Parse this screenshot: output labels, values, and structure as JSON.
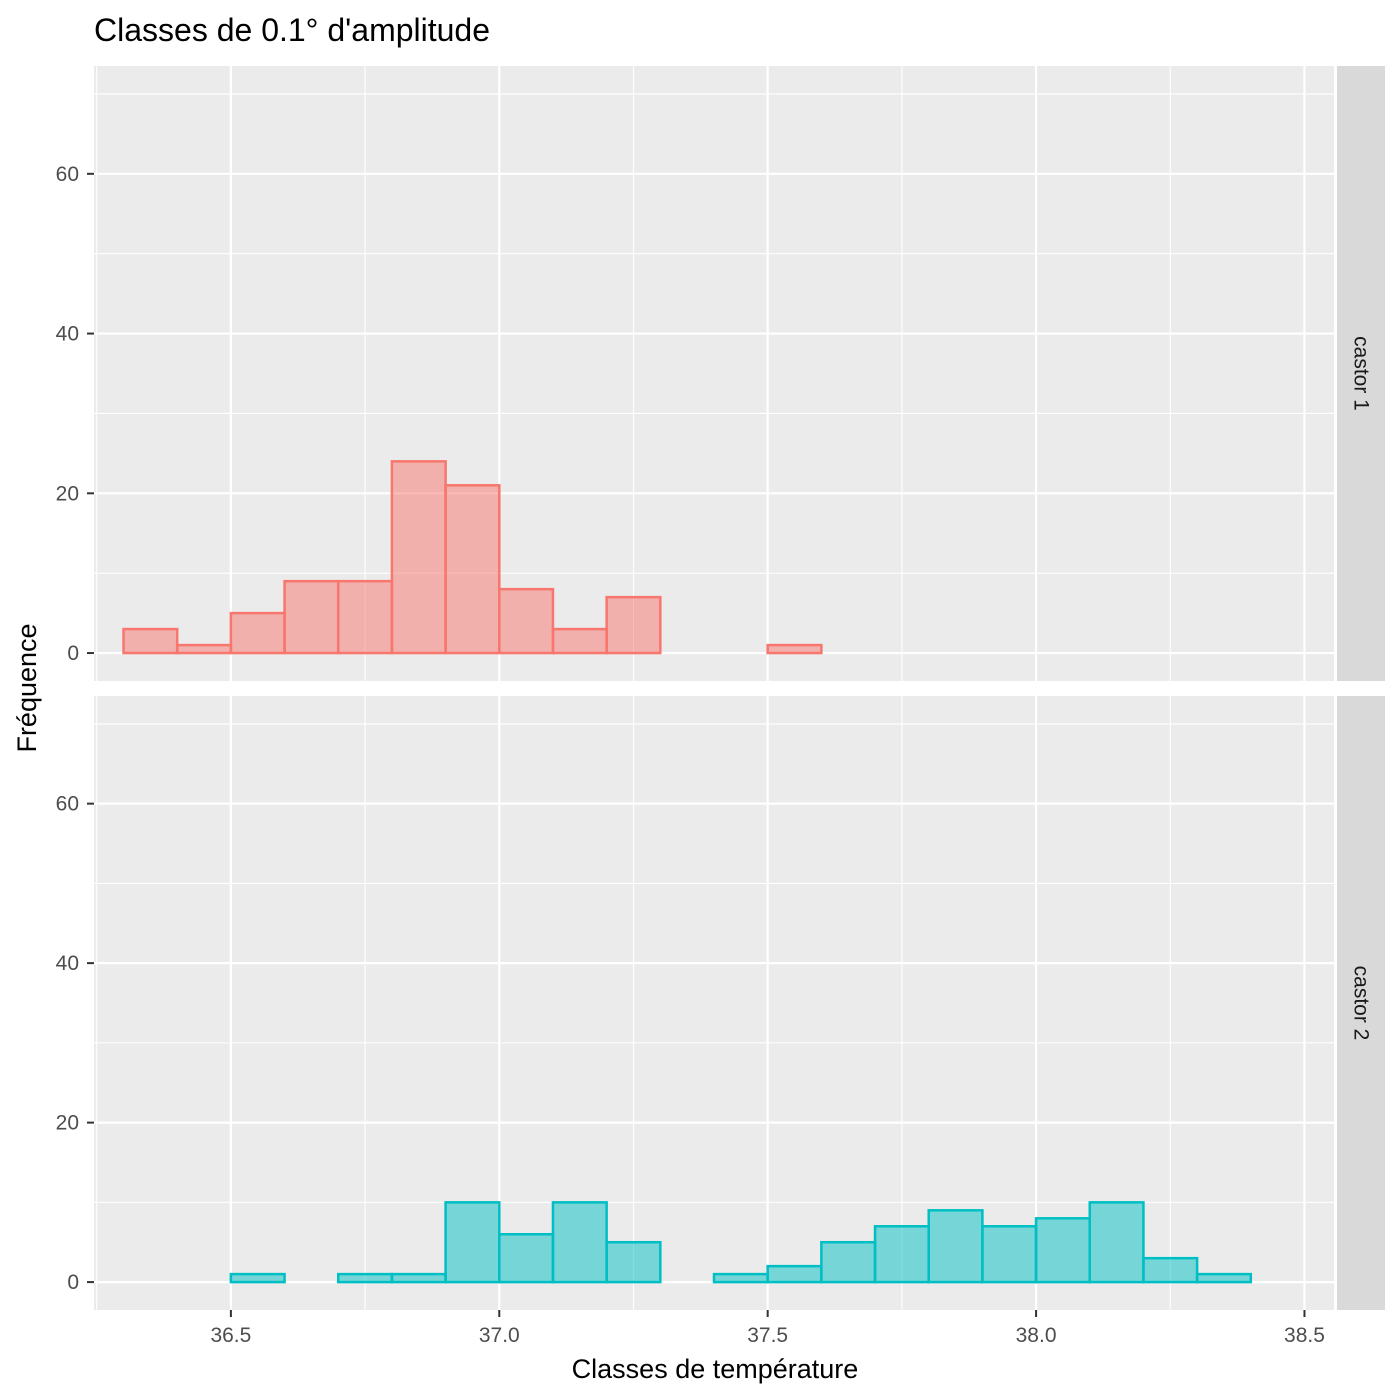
{
  "chart_data": {
    "type": "bar",
    "title": "Classes de 0.1° d'amplitude",
    "xlabel": "Classes de température",
    "ylabel": "Fréquence",
    "xlim": [
      36.245,
      38.555
    ],
    "ylim": [
      -3.5,
      73.5
    ],
    "x_ticks": [
      36.5,
      37.0,
      37.5,
      38.0,
      38.5
    ],
    "x_tick_labels": [
      "36.5",
      "37.0",
      "37.5",
      "38.0",
      "38.5"
    ],
    "y_ticks": [
      0,
      20,
      40,
      60
    ],
    "y_tick_labels": [
      "0",
      "20",
      "40",
      "60"
    ],
    "grid": true,
    "bin_width": 0.1,
    "bin_starts": [
      36.3,
      36.4,
      36.5,
      36.6,
      36.7,
      36.8,
      36.9,
      37.0,
      37.1,
      37.2,
      37.3,
      37.4,
      37.5,
      37.6,
      37.7,
      37.8,
      37.9,
      38.0,
      38.1,
      38.2,
      38.3
    ],
    "panels": [
      {
        "name": "castor 1",
        "fill": "#f8766d",
        "values": [
          3,
          1,
          5,
          9,
          9,
          24,
          21,
          8,
          3,
          7,
          0,
          0,
          1,
          0,
          0,
          0,
          0,
          0,
          0,
          0,
          0
        ]
      },
      {
        "name": "castor 2",
        "fill": "#00bfc4",
        "values": [
          0,
          0,
          1,
          0,
          1,
          1,
          10,
          6,
          10,
          5,
          0,
          1,
          2,
          5,
          7,
          9,
          7,
          8,
          10,
          3,
          1
        ]
      }
    ]
  }
}
